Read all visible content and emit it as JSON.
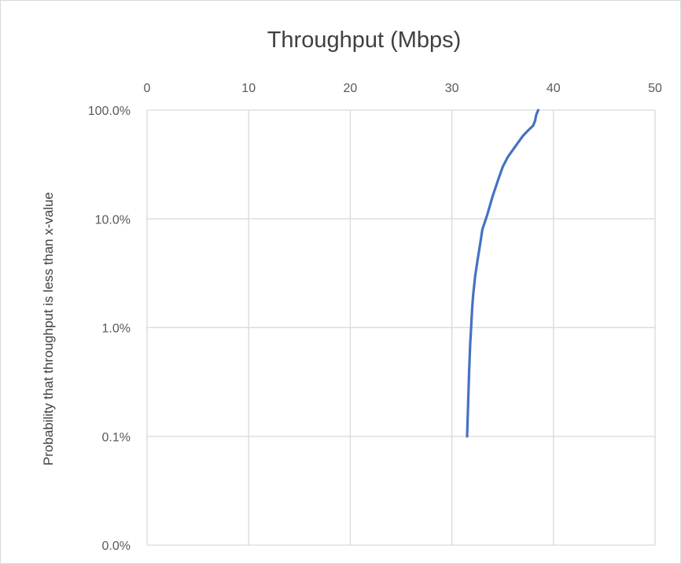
{
  "chart_data": {
    "type": "line",
    "title": "Throughput (Mbps)",
    "xlabel": "",
    "ylabel": "Probability that throughput is less than x-value",
    "x_axis_position": "top",
    "xlim": [
      0,
      50
    ],
    "x_ticks": [
      0,
      10,
      20,
      30,
      40,
      50
    ],
    "x_tick_labels": [
      "0",
      "10",
      "20",
      "30",
      "40",
      "50"
    ],
    "y_scale": "log",
    "y_ticks": [
      0.1,
      1.0,
      10.0,
      100.0
    ],
    "y_tick_labels": [
      "0.1%",
      "1.0%",
      "10.0%",
      "100.0%"
    ],
    "y_bottom_label": "0.0%",
    "y_unit": "percent",
    "grid": true,
    "legend": "none",
    "series": [
      {
        "color": "#4472c4",
        "x": [
          31.5,
          31.6,
          31.7,
          31.8,
          31.9,
          32.0,
          32.1,
          32.3,
          32.5,
          32.8,
          33.0,
          33.5,
          34.0,
          34.5,
          35.0,
          35.5,
          36.0,
          36.5,
          37.0,
          37.5,
          38.0,
          38.2,
          38.3,
          38.5
        ],
        "y": [
          0.1,
          0.2,
          0.4,
          0.7,
          1.0,
          1.5,
          2.0,
          3.0,
          4.0,
          6.0,
          8.0,
          11.0,
          16.0,
          22.0,
          30.0,
          37.0,
          43.0,
          50.0,
          58.0,
          65.0,
          72.0,
          80.0,
          90.0,
          100.0
        ]
      }
    ]
  }
}
